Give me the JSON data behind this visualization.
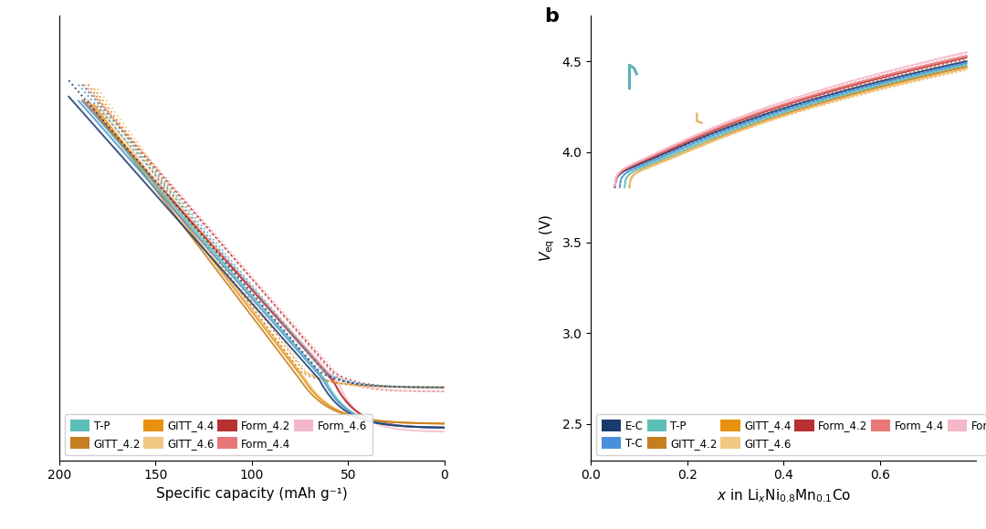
{
  "series": [
    {
      "name": "E-C",
      "color": "#1a3a6b",
      "lw": 1.4
    },
    {
      "name": "T-C",
      "color": "#4a90d9",
      "lw": 1.4
    },
    {
      "name": "T-P",
      "color": "#5bbfb5",
      "lw": 1.4
    },
    {
      "name": "GITT_4.2",
      "color": "#c47f20",
      "lw": 1.4
    },
    {
      "name": "GITT_4.4",
      "color": "#e89010",
      "lw": 1.4
    },
    {
      "name": "GITT_4.6",
      "color": "#f0c882",
      "lw": 1.4
    },
    {
      "name": "Form_4.2",
      "color": "#b83030",
      "lw": 1.4
    },
    {
      "name": "Form_4.4",
      "color": "#e87878",
      "lw": 1.4
    },
    {
      "name": "Form_4.6",
      "color": "#f5b8c8",
      "lw": 1.4
    }
  ],
  "legend_colors_a": {
    "T-P": "#5bbfb5",
    "GITT_4.2": "#c47f20",
    "GITT_4.4": "#e89010",
    "GITT_4.6": "#f0c882",
    "Form_4.2": "#b83030",
    "Form_4.4": "#e87878",
    "Form_4.6": "#f5b8c8"
  },
  "legend_colors_b": {
    "E-C": "#1a3a6b",
    "T-C": "#4a90d9",
    "T-P": "#5bbfb5",
    "GITT_4.2": "#c47f20",
    "GITT_4.4": "#e89010",
    "GITT_4.6": "#f0c882",
    "Form_4.2": "#b83030",
    "Form_4.4": "#e87878",
    "Form_4.6": "#f5b8c8"
  },
  "xlabel_a": "Specific capacity (mAh g⁻¹)",
  "ylabel_b": "$V_{\\mathrm{eq}}$ (V)",
  "xlabel_b": "$x$ in Li$_x$Ni$_{0.8}$Mn$_{0.1}$Co",
  "background": "#ffffff",
  "figsize": [
    10.8,
    5.8
  ],
  "dpi": 100
}
